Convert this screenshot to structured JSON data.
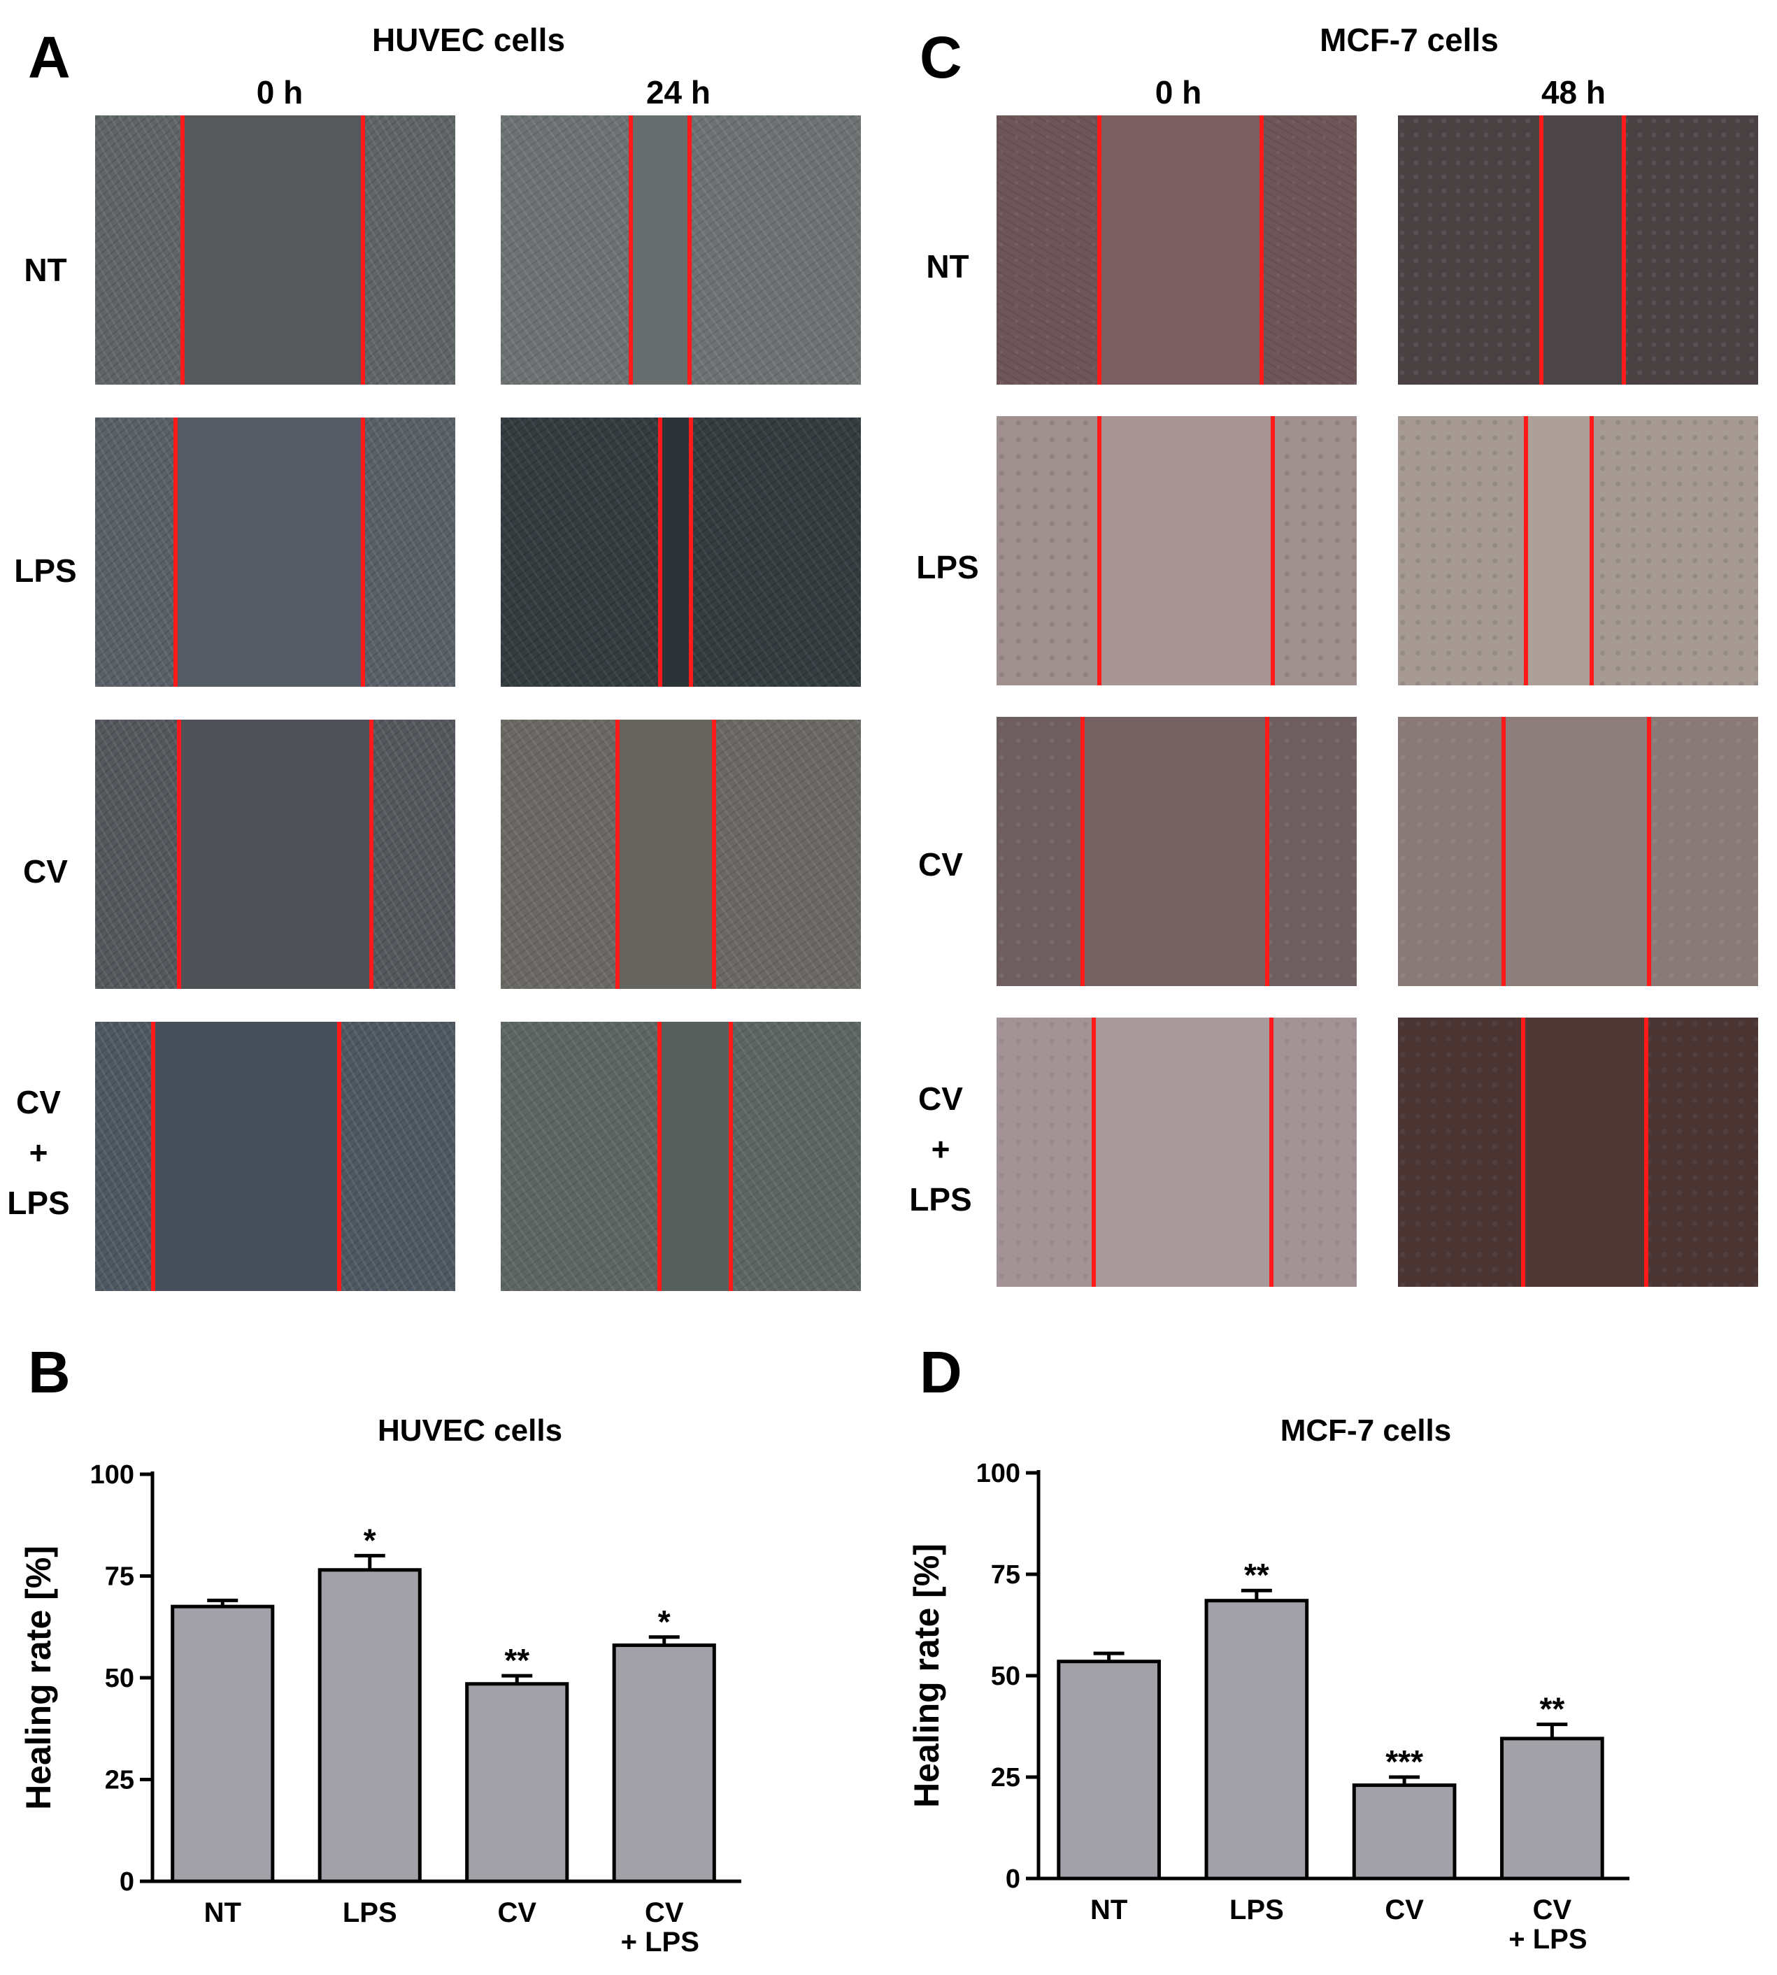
{
  "panelA": {
    "letter": "A",
    "title": "HUVEC cells",
    "time0": "0 h",
    "time1": "24 h",
    "rows": [
      "NT",
      "LPS",
      "CV",
      "CV\n+\nLPS"
    ]
  },
  "panelC": {
    "letter": "C",
    "title": "MCF-7 cells",
    "time0": "0 h",
    "time1": "48 h",
    "rows": [
      "NT",
      "LPS",
      "CV",
      "CV\n+\nLPS"
    ]
  },
  "panelB": {
    "letter": "B"
  },
  "panelD": {
    "letter": "D"
  },
  "colors": {
    "bar": "#a2a1a7",
    "cut_line": "#ff1a1a"
  },
  "chart_data": [
    {
      "type": "bar",
      "title": "HUVEC cells",
      "ylabel": "Healing rate [%]",
      "xlabel": "",
      "categories": [
        "NT",
        "LPS",
        "CV",
        "CV\n+ LPS"
      ],
      "values": [
        67.5,
        76.5,
        48.5,
        58
      ],
      "errors": [
        1.5,
        3.5,
        2,
        2
      ],
      "significance": [
        "",
        "*",
        "**",
        "*"
      ],
      "ylim": [
        0,
        100
      ],
      "yticks": [
        "0",
        "25",
        "50",
        "75",
        "100"
      ]
    },
    {
      "type": "bar",
      "title": "MCF-7 cells",
      "ylabel": "Healing rate [%]",
      "xlabel": "",
      "categories": [
        "NT",
        "LPS",
        "CV",
        "CV\n+ LPS"
      ],
      "values": [
        53.5,
        68.5,
        23,
        34.5
      ],
      "errors": [
        2,
        2.5,
        2,
        3.5
      ],
      "significance": [
        "",
        "**",
        "***",
        "**"
      ],
      "ylim": [
        0,
        100
      ],
      "yticks": [
        "0",
        "25",
        "50",
        "75",
        "100"
      ]
    }
  ]
}
